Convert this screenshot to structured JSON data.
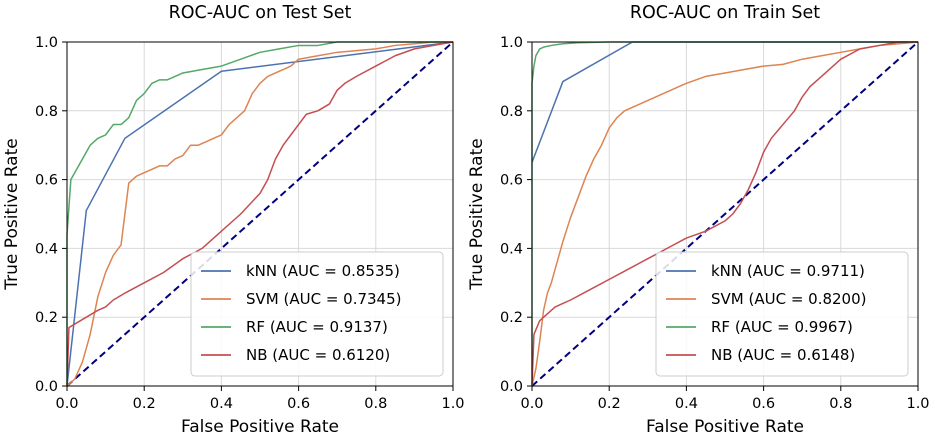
{
  "colors": {
    "knn": "#4c72b0",
    "svm": "#dd8452",
    "rf": "#55a868",
    "nb": "#c44e52",
    "chance": "#000080",
    "grid": "#d9d9d9"
  },
  "chart_data": [
    {
      "type": "line",
      "title": "ROC-AUC on Test Set",
      "xlabel": "False Positive Rate",
      "ylabel": "True Positive Rate",
      "xlim": [
        0,
        1
      ],
      "ylim": [
        0,
        1
      ],
      "xticks": [
        "0.0",
        "0.2",
        "0.4",
        "0.6",
        "0.8",
        "1.0"
      ],
      "yticks": [
        "0.0",
        "0.2",
        "0.4",
        "0.6",
        "0.8",
        "1.0"
      ],
      "grid": true,
      "legend_position": "lower-right",
      "series": [
        {
          "key": "knn",
          "name": "kNN (AUC = 0.8535)",
          "x": [
            0,
            0.05,
            0.15,
            0.4,
            1.0
          ],
          "y": [
            0,
            0.51,
            0.72,
            0.915,
            1.0
          ]
        },
        {
          "key": "svm",
          "name": "SVM (AUC = 0.7345)",
          "x": [
            0,
            0.02,
            0.04,
            0.06,
            0.08,
            0.1,
            0.12,
            0.14,
            0.16,
            0.18,
            0.2,
            0.22,
            0.24,
            0.26,
            0.28,
            0.3,
            0.32,
            0.34,
            0.36,
            0.38,
            0.4,
            0.42,
            0.44,
            0.46,
            0.48,
            0.5,
            0.52,
            0.54,
            0.56,
            0.58,
            0.6,
            0.65,
            0.7,
            0.75,
            0.8,
            0.85,
            0.9,
            0.95,
            1.0
          ],
          "y": [
            0,
            0.02,
            0.07,
            0.15,
            0.26,
            0.33,
            0.38,
            0.41,
            0.59,
            0.61,
            0.62,
            0.63,
            0.64,
            0.64,
            0.66,
            0.67,
            0.7,
            0.7,
            0.71,
            0.72,
            0.73,
            0.76,
            0.78,
            0.8,
            0.85,
            0.88,
            0.9,
            0.91,
            0.92,
            0.93,
            0.95,
            0.96,
            0.97,
            0.975,
            0.98,
            0.99,
            0.995,
            1.0,
            1.0
          ]
        },
        {
          "key": "rf",
          "name": "RF (AUC = 0.9137)",
          "x": [
            0,
            0,
            0.01,
            0.02,
            0.04,
            0.06,
            0.08,
            0.1,
            0.12,
            0.14,
            0.16,
            0.18,
            0.2,
            0.22,
            0.24,
            0.26,
            0.28,
            0.3,
            0.35,
            0.4,
            0.45,
            0.5,
            0.55,
            0.6,
            0.65,
            0.7,
            0.75,
            0.8,
            1.0
          ],
          "y": [
            0,
            0.44,
            0.6,
            0.62,
            0.66,
            0.7,
            0.72,
            0.73,
            0.76,
            0.76,
            0.78,
            0.83,
            0.85,
            0.88,
            0.89,
            0.89,
            0.9,
            0.91,
            0.92,
            0.93,
            0.95,
            0.97,
            0.98,
            0.99,
            0.99,
            1.0,
            1.0,
            1.0,
            1.0
          ]
        },
        {
          "key": "nb",
          "name": "NB (AUC = 0.6120)",
          "x": [
            0,
            0.005,
            0.02,
            0.05,
            0.08,
            0.1,
            0.12,
            0.15,
            0.2,
            0.25,
            0.3,
            0.35,
            0.4,
            0.45,
            0.5,
            0.52,
            0.54,
            0.56,
            0.58,
            0.6,
            0.62,
            0.65,
            0.68,
            0.7,
            0.72,
            0.75,
            0.8,
            0.85,
            0.9,
            0.95,
            1.0
          ],
          "y": [
            0,
            0.17,
            0.18,
            0.2,
            0.22,
            0.23,
            0.25,
            0.27,
            0.3,
            0.33,
            0.37,
            0.4,
            0.45,
            0.5,
            0.56,
            0.6,
            0.66,
            0.7,
            0.73,
            0.76,
            0.79,
            0.8,
            0.82,
            0.86,
            0.88,
            0.9,
            0.93,
            0.96,
            0.98,
            0.99,
            1.0
          ]
        }
      ]
    },
    {
      "type": "line",
      "title": "ROC-AUC on Train Set",
      "xlabel": "False Positive Rate",
      "ylabel": "True Positive Rate",
      "xlim": [
        0,
        1
      ],
      "ylim": [
        0,
        1
      ],
      "xticks": [
        "0.0",
        "0.2",
        "0.4",
        "0.6",
        "0.8",
        "1.0"
      ],
      "yticks": [
        "0.0",
        "0.2",
        "0.4",
        "0.6",
        "0.8",
        "1.0"
      ],
      "grid": true,
      "legend_position": "lower-right",
      "series": [
        {
          "key": "knn",
          "name": "kNN (AUC = 0.9711)",
          "x": [
            0,
            0.08,
            0.26,
            1.0
          ],
          "y": [
            0.65,
            0.885,
            1.0,
            1.0
          ]
        },
        {
          "key": "svm",
          "name": "SVM (AUC = 0.8200)",
          "x": [
            0,
            0.01,
            0.02,
            0.03,
            0.04,
            0.05,
            0.06,
            0.08,
            0.1,
            0.12,
            0.14,
            0.16,
            0.18,
            0.2,
            0.22,
            0.24,
            0.26,
            0.28,
            0.3,
            0.32,
            0.34,
            0.36,
            0.38,
            0.4,
            0.45,
            0.5,
            0.55,
            0.6,
            0.65,
            0.7,
            0.75,
            0.8,
            0.85,
            0.9,
            0.95,
            1.0
          ],
          "y": [
            0,
            0.05,
            0.13,
            0.22,
            0.27,
            0.3,
            0.34,
            0.42,
            0.49,
            0.55,
            0.61,
            0.66,
            0.7,
            0.75,
            0.78,
            0.8,
            0.81,
            0.82,
            0.83,
            0.84,
            0.85,
            0.86,
            0.87,
            0.88,
            0.9,
            0.91,
            0.92,
            0.93,
            0.935,
            0.95,
            0.96,
            0.97,
            0.98,
            0.99,
            0.995,
            1.0
          ]
        },
        {
          "key": "rf",
          "name": "RF (AUC = 0.9967)",
          "x": [
            0,
            0,
            0.005,
            0.01,
            0.02,
            0.03,
            0.05,
            0.08,
            0.12,
            0.2,
            0.3,
            0.5,
            1.0
          ],
          "y": [
            0,
            0.88,
            0.93,
            0.96,
            0.98,
            0.985,
            0.99,
            0.995,
            0.998,
            1.0,
            1.0,
            1.0,
            1.0
          ]
        },
        {
          "key": "nb",
          "name": "NB (AUC = 0.6148)",
          "x": [
            0,
            0.005,
            0.02,
            0.04,
            0.06,
            0.08,
            0.1,
            0.15,
            0.2,
            0.25,
            0.3,
            0.35,
            0.4,
            0.45,
            0.5,
            0.52,
            0.54,
            0.56,
            0.58,
            0.6,
            0.62,
            0.65,
            0.68,
            0.7,
            0.72,
            0.75,
            0.78,
            0.8,
            0.85,
            0.9,
            0.95,
            1.0
          ],
          "y": [
            0,
            0.15,
            0.19,
            0.21,
            0.23,
            0.24,
            0.25,
            0.28,
            0.31,
            0.34,
            0.37,
            0.4,
            0.43,
            0.45,
            0.48,
            0.5,
            0.53,
            0.57,
            0.62,
            0.68,
            0.72,
            0.76,
            0.8,
            0.84,
            0.87,
            0.9,
            0.93,
            0.95,
            0.98,
            0.99,
            1.0,
            1.0
          ]
        }
      ]
    }
  ]
}
